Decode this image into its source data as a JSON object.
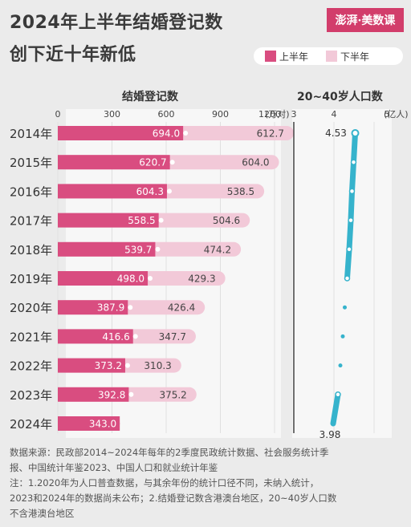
{
  "header": {
    "title_line1": "2024年上半年结婚登记数",
    "title_line2": "创下近十年新低",
    "logo_text": "澎湃·美数课"
  },
  "legend": [
    {
      "label": "上半年",
      "color": "#d94d80"
    },
    {
      "label": "下半年",
      "color": "#f2c9d8"
    }
  ],
  "chart_data": [
    {
      "type": "bar",
      "stacked": true,
      "orientation": "horizontal",
      "title": "结婚登记数",
      "unit": "(万对)",
      "xlim": [
        0,
        1200
      ],
      "xticks": [
        0,
        300,
        600,
        900,
        1200
      ],
      "categories": [
        "2014年",
        "2015年",
        "2016年",
        "2017年",
        "2018年",
        "2019年",
        "2020年",
        "2021年",
        "2022年",
        "2023年",
        "2024年"
      ],
      "series": [
        {
          "name": "上半年",
          "color": "#d94d80",
          "values": [
            694.0,
            620.7,
            604.3,
            558.5,
            539.7,
            498.0,
            387.9,
            416.6,
            373.2,
            392.8,
            343.0
          ]
        },
        {
          "name": "下半年",
          "color": "#f2c9d8",
          "values": [
            612.7,
            604.0,
            538.5,
            504.6,
            474.2,
            429.3,
            426.4,
            347.7,
            310.3,
            375.2,
            null
          ]
        }
      ]
    },
    {
      "type": "line",
      "title": "20~40岁人口数",
      "unit": "(亿人)",
      "xlim": [
        3,
        5
      ],
      "xticks": [
        3,
        4,
        5
      ],
      "categories": [
        "2014年",
        "2015年",
        "2016年",
        "2017年",
        "2018年",
        "2019年",
        "2020年",
        "2021年",
        "2022年",
        "2023年",
        "2024年"
      ],
      "values": [
        4.53,
        4.49,
        4.45,
        4.42,
        4.38,
        4.33,
        4.27,
        4.22,
        4.16,
        4.1,
        3.98
      ],
      "labeled_points": {
        "first": "4.53",
        "last": "3.98"
      },
      "color": "#36b3cc"
    }
  ],
  "footer": {
    "lines": [
      "数据来源：民政部2014~2024年每年的2季度民政统计数据、社会服务统计季",
      "报、中国统计年鉴2023、中国人口和就业统计年鉴",
      "注：1.2020年为人口普查数据，与其余年份的统计口径不同，未纳入统计，",
      "2023和2024年的数据尚未公布；2.结婚登记数含港澳台地区，20~40岁人口数",
      "不含港澳台地区"
    ]
  }
}
